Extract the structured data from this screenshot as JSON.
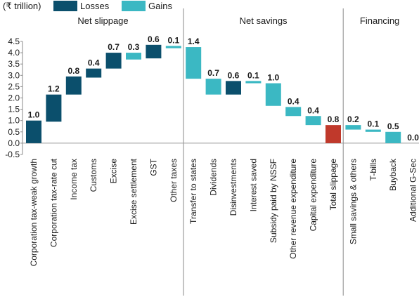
{
  "chart_data": {
    "type": "bar",
    "subtype": "waterfall",
    "unit_label": "(₹ trillion)",
    "ylim": [
      -0.5,
      4.5
    ],
    "yticks": [
      "-0.5",
      "0.0",
      "0.5",
      "1.0",
      "1.5",
      "2.0",
      "2.5",
      "3.0",
      "3.5",
      "4.0",
      "4.5"
    ],
    "grid": false,
    "legend_position": "top-left",
    "legend": [
      {
        "label": "Losses",
        "color": "#0b4f6c"
      },
      {
        "label": "Gains",
        "color": "#3bb8c3"
      }
    ],
    "total_color": "#c0392b",
    "sections": [
      {
        "title": "Net slippage",
        "first": 0,
        "last": 7
      },
      {
        "title": "Net savings",
        "first": 8,
        "last": 15
      },
      {
        "title": "Financing",
        "first": 16,
        "last": 19
      }
    ],
    "bars": [
      {
        "category": "Corporation tax-weak growth",
        "value": 1.0,
        "label": "1.0",
        "kind": "loss",
        "base": 0.0
      },
      {
        "category": "Corporation tax-rate cut",
        "value": 1.2,
        "label": "1.2",
        "kind": "loss",
        "base": 0.95
      },
      {
        "category": "Income tax",
        "value": 0.8,
        "label": "0.8",
        "kind": "loss",
        "base": 2.15
      },
      {
        "category": "Customs",
        "value": 0.4,
        "label": "0.4",
        "kind": "loss",
        "base": 2.9
      },
      {
        "category": "Excise",
        "value": 0.7,
        "label": "0.7",
        "kind": "loss",
        "base": 3.3
      },
      {
        "category": "Excise settlement",
        "value": 0.3,
        "label": "0.3",
        "kind": "gain",
        "base": 3.7
      },
      {
        "category": "GST",
        "value": 0.6,
        "label": "0.6",
        "kind": "loss",
        "base": 3.75
      },
      {
        "category": "Other taxes",
        "value": 0.1,
        "label": "0.1",
        "kind": "gain",
        "base": 4.2
      },
      {
        "category": "Transfer to states",
        "value": 1.4,
        "label": "1.4",
        "kind": "gain",
        "base": 2.85
      },
      {
        "category": "Dividends",
        "value": 0.7,
        "label": "0.7",
        "kind": "gain",
        "base": 2.15
      },
      {
        "category": "Disinvestments",
        "value": 0.6,
        "label": "0.6",
        "kind": "loss",
        "base": 2.15
      },
      {
        "category": "Interest saved",
        "value": 0.1,
        "label": "0.1",
        "kind": "gain",
        "base": 2.65
      },
      {
        "category": "Subsidy paid by NSSF",
        "value": 1.0,
        "label": "1.0",
        "kind": "gain",
        "base": 1.65
      },
      {
        "category": "Other revenue expenditure",
        "value": 0.4,
        "label": "0.4",
        "kind": "gain",
        "base": 1.2
      },
      {
        "category": "Capital expenditure",
        "value": 0.4,
        "label": "0.4",
        "kind": "gain",
        "base": 0.8
      },
      {
        "category": "Total slippage",
        "value": 0.8,
        "label": "0.8",
        "kind": "total",
        "base": 0.0
      },
      {
        "category": "Small savings & others",
        "value": 0.2,
        "label": "0.2",
        "kind": "gain",
        "base": 0.6
      },
      {
        "category": "T-bills",
        "value": 0.1,
        "label": "0.1",
        "kind": "gain",
        "base": 0.5
      },
      {
        "category": "Buyback",
        "value": 0.5,
        "label": "0.5",
        "kind": "gain",
        "base": 0.0
      },
      {
        "category": "Additional G-Sec",
        "value": 0.0,
        "label": "0.0",
        "kind": "gain",
        "base": 0.0
      }
    ]
  }
}
